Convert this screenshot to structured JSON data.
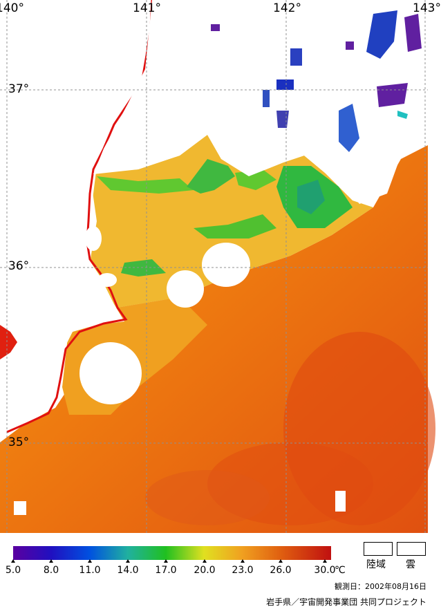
{
  "map": {
    "lon_labels": [
      "140°",
      "141°",
      "142°",
      "143°"
    ],
    "lat_labels": [
      "37°",
      "36°",
      "35°"
    ]
  },
  "legend": {
    "ticks": [
      "5.0",
      "8.0",
      "11.0",
      "14.0",
      "17.0",
      "20.0",
      "23.0",
      "26.0",
      "30.0"
    ],
    "unit": "℃",
    "land_label": "陸域",
    "cloud_label": "雲",
    "colors": [
      "#5a00a0",
      "#1a20c0",
      "#0070e0",
      "#20c0a0",
      "#20c020",
      "#e0e020",
      "#f0a020",
      "#e05010",
      "#c01010"
    ]
  },
  "observation_date": "観測日：2002年08月16日",
  "credit": "岩手県／宇宙開発事業団 共同プロジェクト"
}
